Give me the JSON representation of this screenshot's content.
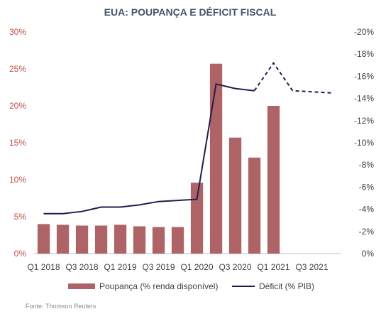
{
  "chart_data": {
    "type": "bar+line",
    "title": "EUA: POUPANÇA E DÉFICIT FISCAL",
    "source": "Fonte: Thomson Reuters",
    "quarters": [
      "Q1 2018",
      "Q2 2018",
      "Q3 2018",
      "Q4 2018",
      "Q1 2019",
      "Q2 2019",
      "Q3 2019",
      "Q4 2019",
      "Q1 2020",
      "Q2 2020",
      "Q3 2020",
      "Q4 2020",
      "Q1 2021",
      "Q2 2021",
      "Q3 2021",
      "Q4 2021"
    ],
    "x_tick_labels": [
      "Q1 2018",
      "Q3 2018",
      "Q1 2019",
      "Q3 2019",
      "Q1 2020",
      "Q3 2020",
      "Q1 2021",
      "Q3 2021"
    ],
    "left_axis": {
      "ylim": [
        0,
        30
      ],
      "ticks": [
        "0%",
        "5%",
        "10%",
        "15%",
        "20%",
        "25%",
        "30%"
      ],
      "color": "#c0504d"
    },
    "right_axis": {
      "ylim": [
        0,
        -20
      ],
      "ticks": [
        "0%",
        "-2%",
        "-4%",
        "-6%",
        "-8%",
        "-10%",
        "-12%",
        "-14%",
        "-16%",
        "-18%",
        "-20%"
      ],
      "color": "#404040"
    },
    "series": [
      {
        "name": "Poupança (% renda disponível)",
        "type": "bar",
        "axis": "left",
        "color": "#ae6466",
        "values": [
          4.0,
          3.9,
          3.8,
          3.8,
          3.9,
          3.7,
          3.6,
          3.6,
          9.6,
          25.7,
          15.7,
          13.0,
          20.0,
          null,
          null,
          null
        ]
      },
      {
        "name": "Déficit (% PIB)",
        "type": "line",
        "axis": "right",
        "color": "#1f1f4d",
        "values": [
          -3.6,
          -3.6,
          -3.8,
          -4.2,
          -4.2,
          -4.4,
          -4.7,
          -4.8,
          -4.9,
          -15.3,
          -14.9,
          -14.7,
          -17.2,
          -14.7,
          -14.6,
          -14.5
        ],
        "dashed_from_index": 11
      }
    ]
  }
}
